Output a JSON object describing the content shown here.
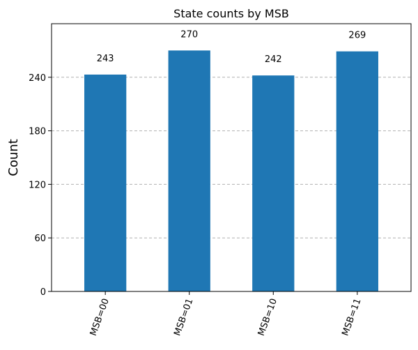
{
  "chart_data": {
    "type": "bar",
    "title": "State counts by MSB",
    "xlabel": "",
    "ylabel": "Count",
    "categories": [
      "MSB=00",
      "MSB=01",
      "MSB=10",
      "MSB=11"
    ],
    "values": [
      243,
      270,
      242,
      269
    ],
    "data_labels": [
      "243",
      "270",
      "242",
      "269"
    ],
    "ylim": [
      0,
      300
    ],
    "yticks": [
      0,
      60,
      120,
      180,
      240
    ],
    "grid": "y-dashed",
    "bar_color": "#1f77b4",
    "grid_color": "#b0b0b0",
    "x_tick_rotation": -70
  }
}
